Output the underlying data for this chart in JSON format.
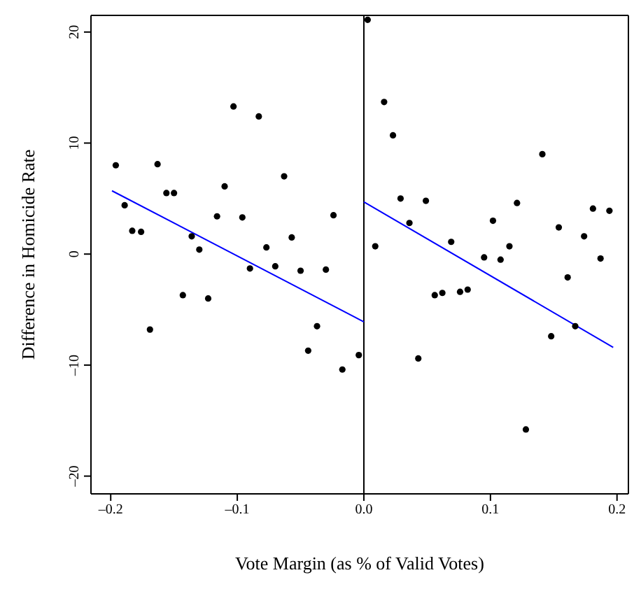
{
  "chart_data": {
    "type": "scatter",
    "xlabel": "Vote Margin (as % of Valid Votes)",
    "ylabel": "Difference in Homicide Rate",
    "xlim": [
      -0.2156,
      0.209
    ],
    "ylim": [
      -21.6,
      21.5
    ],
    "xticks": [
      {
        "value": -0.2,
        "label": "–0.2"
      },
      {
        "value": -0.1,
        "label": "–0.1"
      },
      {
        "value": 0,
        "label": "0.0"
      },
      0.1,
      0.2
    ],
    "yticks": [
      {
        "value": -20,
        "label": "–20"
      },
      {
        "value": -10,
        "label": "–10"
      },
      0,
      10,
      20
    ],
    "legend": false,
    "marker": "circle",
    "ref_lines": [
      {
        "axis": "x",
        "value": 0,
        "color": "#000000"
      }
    ],
    "series": [
      {
        "color": "#000000",
        "x": [
          -0.196,
          -0.189,
          -0.183,
          -0.176,
          -0.169,
          -0.163,
          -0.156,
          -0.15,
          -0.143,
          -0.136,
          -0.13,
          -0.123,
          -0.116,
          -0.11,
          -0.103,
          -0.096,
          -0.09,
          -0.083,
          -0.077,
          -0.07,
          -0.063,
          -0.057,
          -0.05,
          -0.044,
          -0.037,
          -0.03,
          -0.024,
          -0.017,
          -0.004,
          0.003,
          0.009,
          0.016,
          0.023,
          0.029,
          0.036,
          0.043,
          0.049,
          0.056,
          0.062,
          0.069,
          0.076,
          0.082,
          0.095,
          0.102,
          0.108,
          0.115,
          0.121,
          0.128,
          0.141,
          0.148,
          0.154,
          0.161,
          0.167,
          0.174,
          0.181,
          0.187,
          0.194
        ],
        "values": [
          8.0,
          4.4,
          2.1,
          2.0,
          -6.8,
          8.1,
          5.5,
          5.5,
          -3.7,
          1.6,
          0.4,
          -4.0,
          3.4,
          6.1,
          13.3,
          3.3,
          -1.3,
          12.4,
          0.6,
          -1.1,
          7.0,
          1.5,
          -1.5,
          -8.7,
          -6.5,
          -1.4,
          3.5,
          -10.4,
          -9.1,
          21.1,
          0.7,
          13.7,
          10.7,
          5.0,
          2.8,
          -9.4,
          4.8,
          -3.7,
          -3.5,
          1.1,
          -3.4,
          -3.2,
          -0.3,
          3.0,
          -0.5,
          0.7,
          4.6,
          -15.8,
          9.0,
          -7.4,
          2.4,
          -2.1,
          -6.5,
          1.6,
          4.1,
          -0.4,
          3.9
        ]
      },
      {
        "type": "line",
        "color": "#0000ff",
        "marker": "none",
        "x": [
          -0.199,
          0.0
        ],
        "values": [
          5.7,
          -6.1
        ]
      },
      {
        "type": "line",
        "color": "#0000ff",
        "marker": "none",
        "x": [
          0.0,
          0.197
        ],
        "values": [
          4.7,
          -8.4
        ]
      }
    ]
  }
}
